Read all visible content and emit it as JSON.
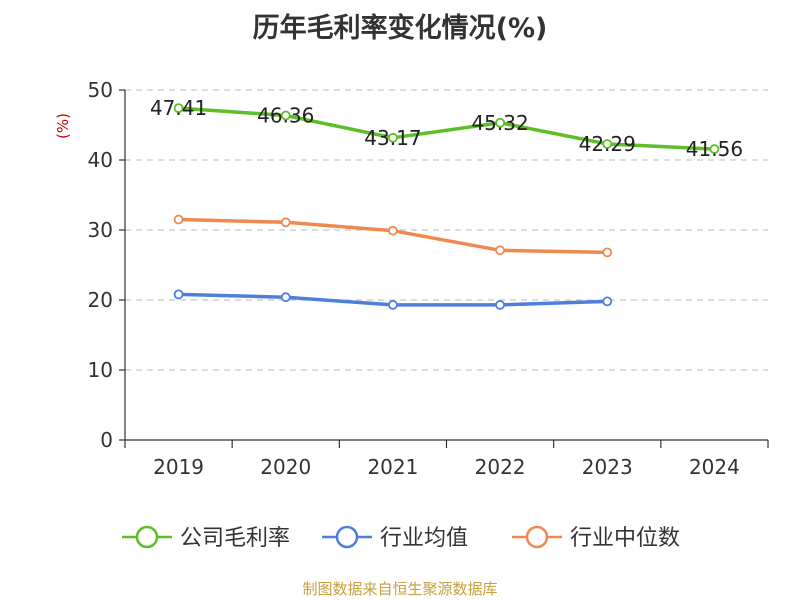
{
  "chart_data": {
    "type": "line",
    "title": "历年毛利率变化情况(%)",
    "ylabel": "(%)",
    "xlabel": "",
    "ylim": [
      0,
      50
    ],
    "yticks": [
      0,
      10,
      20,
      30,
      40,
      50
    ],
    "categories": [
      "2019",
      "2020",
      "2021",
      "2022",
      "2023",
      "2024"
    ],
    "grid": "horizontal-dashed",
    "legend_position": "bottom",
    "series": [
      {
        "name": "公司毛利率",
        "color": "#5dbe26",
        "values": [
          47.41,
          46.36,
          43.17,
          45.32,
          42.29,
          41.56
        ],
        "labels": [
          "47.41",
          "46.36",
          "43.17",
          "45.32",
          "42.29",
          "41.56"
        ]
      },
      {
        "name": "行业均值",
        "color": "#4f7fdc",
        "values": [
          20.8,
          20.4,
          19.3,
          19.3,
          19.8,
          null
        ],
        "labels": []
      },
      {
        "name": "行业中位数",
        "color": "#f0894f",
        "values": [
          31.5,
          31.1,
          29.9,
          27.1,
          26.8,
          null
        ],
        "labels": []
      }
    ]
  },
  "source_note": "制图数据来自恒生聚源数据库"
}
